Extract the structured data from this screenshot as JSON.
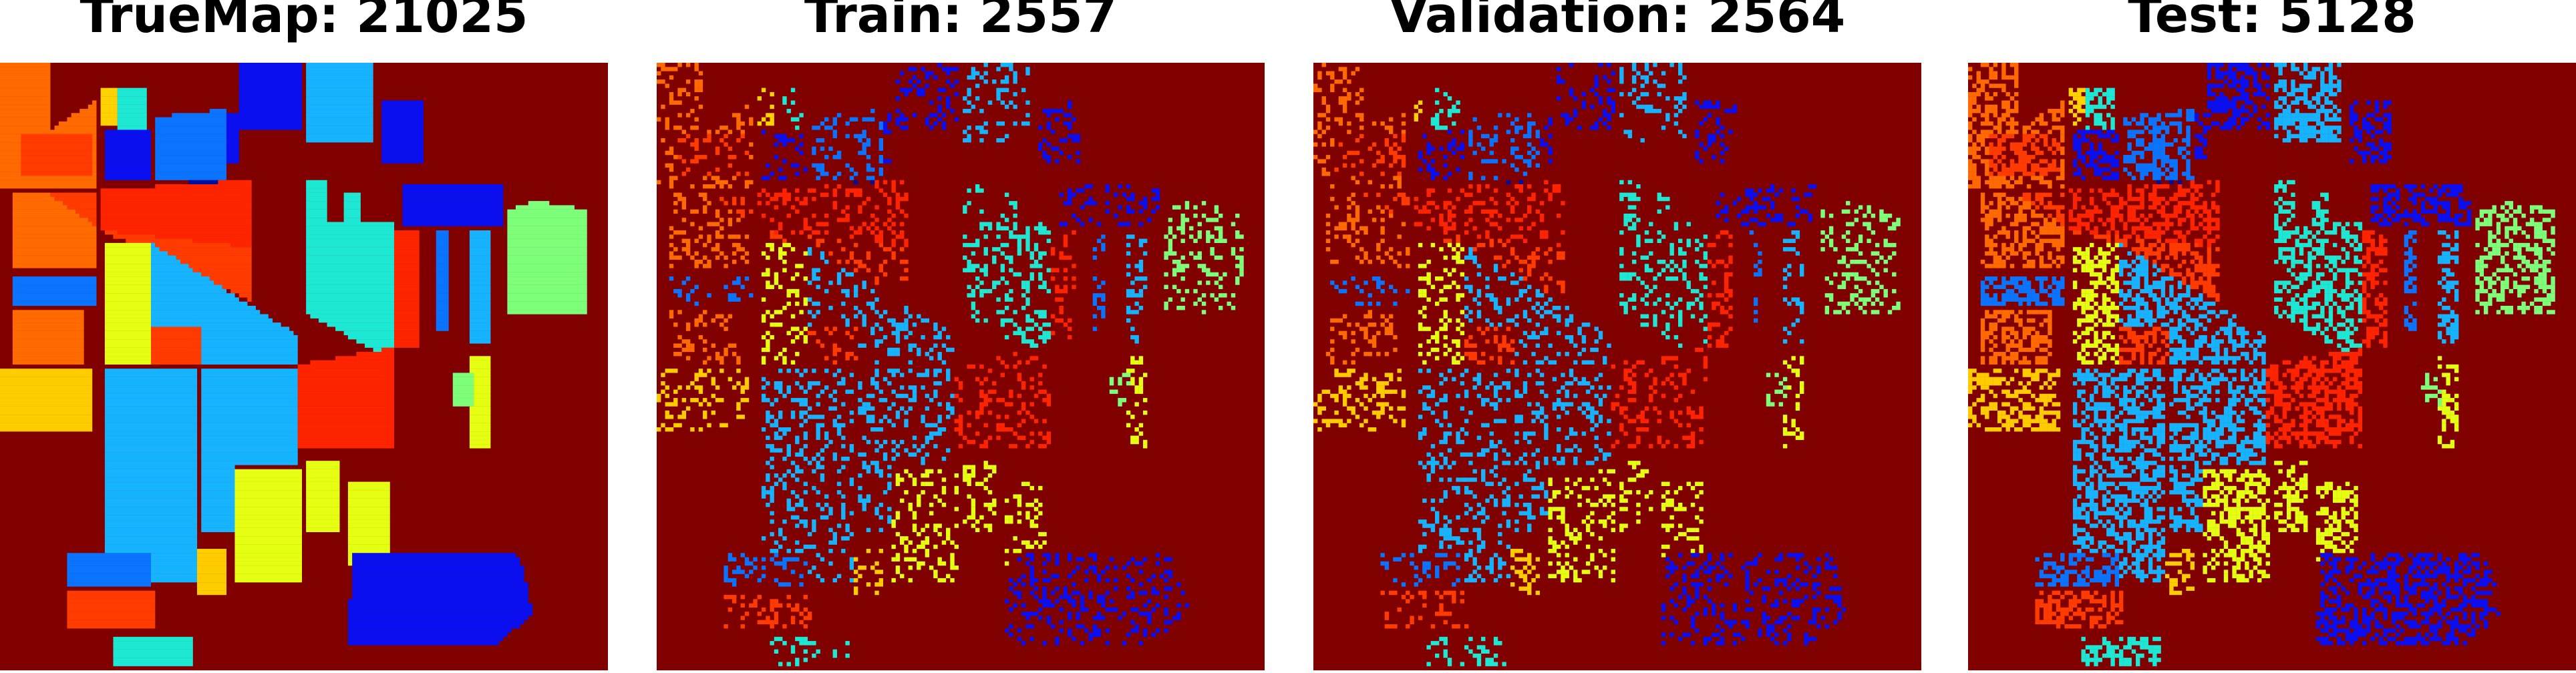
{
  "chart_data": [
    {
      "type": "heatmap",
      "title": "TrueMap: 21025",
      "sample": "full"
    },
    {
      "type": "heatmap",
      "title": "Train: 2557",
      "sample": "train"
    },
    {
      "type": "heatmap",
      "title": "Validation: 2564",
      "sample": "validation"
    },
    {
      "type": "heatmap",
      "title": "Test: 5128",
      "sample": "test"
    }
  ],
  "grid": {
    "rows": 145,
    "cols": 145
  },
  "colors": {
    "background": "#800000",
    "c1": "#ff3b00",
    "c2": "#ff6a00",
    "c3": "#ffcc00",
    "c4": "#e5ff12",
    "c5": "#7dff7a",
    "c6": "#1de8d4",
    "c7": "#16b4ff",
    "c8": "#0a74ff",
    "c9": "#0a0ff0",
    "c10": "#000f9e",
    "c11": "#ff2400",
    "c12": "#ff5a00",
    "c13": "#ffd200"
  }
}
